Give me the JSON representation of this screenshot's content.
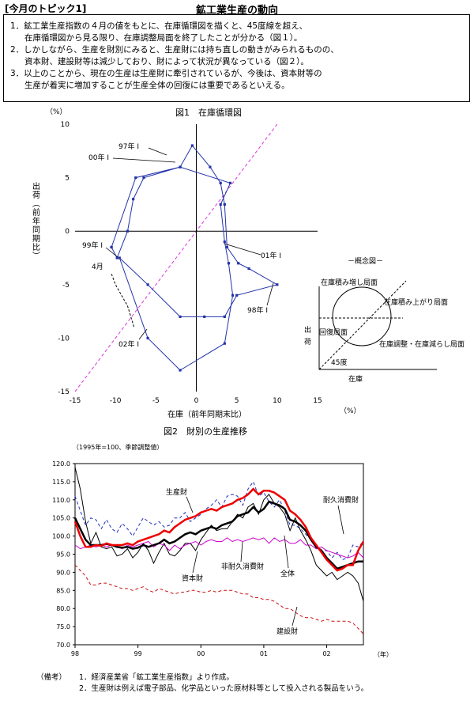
{
  "header": {
    "topic": "[今月のトピック1]",
    "title": "鉱工業生産の動向"
  },
  "summary": [
    "1．鉱工業生産指数の４月の値をもとに、在庫循環図を描くと、45度線を超え、",
    "在庫循環図から見る限り、在庫調整局面を終了したことが分かる（図１）。",
    "2．しかしながら、生産を財別にみると、生産財には持ち直しの動きがみられるものの、",
    "資本財、建設財等は減少しており、財によって状況が異なっている（図２）。",
    "3．以上のことから、現在の生産は生産財に牽引されているが、今後は、資本財等の",
    "生産が着実に増加することが生産全体の回復には重要であるといえる。"
  ],
  "chart_data": [
    {
      "type": "line",
      "title": "図1　在庫循環図",
      "xlabel": "在庫（前年同期末比）",
      "ylabel": "出荷（前年同期比）",
      "x_unit": "（%）",
      "y_unit": "（%）",
      "xlim": [
        -15,
        15
      ],
      "ylim": [
        -15,
        10
      ],
      "xticks": [
        -15,
        -10,
        -5,
        0,
        5,
        10,
        15
      ],
      "yticks": [
        10,
        5,
        0,
        -5,
        -10,
        -15
      ],
      "reference_line": "45度",
      "series": [
        {
          "points": [
            [
              -10.5,
              -1.5
            ],
            [
              -9.8,
              -2.5
            ],
            [
              -8.5,
              0
            ],
            [
              -7.8,
              3
            ],
            [
              -6.5,
              5
            ],
            [
              -2,
              6
            ],
            [
              -0.5,
              8
            ],
            [
              1.7,
              6
            ],
            [
              3,
              4.5
            ],
            [
              3.5,
              2.5
            ],
            [
              3.8,
              -1.5
            ],
            [
              5.2,
              -3
            ],
            [
              6.5,
              -3.5
            ],
            [
              10,
              -5
            ],
            [
              5,
              -6
            ],
            [
              3.5,
              -8
            ],
            [
              1,
              -8
            ],
            [
              -2,
              -8
            ],
            [
              -6,
              -5
            ],
            [
              -9.5,
              -2.5
            ],
            [
              -6,
              -10
            ],
            [
              -2,
              -13
            ],
            [
              3.5,
              -10.5
            ],
            [
              4.5,
              -6
            ],
            [
              4,
              -3
            ],
            [
              3.5,
              -1
            ],
            [
              3,
              2.5
            ],
            [
              4.2,
              4.5
            ],
            [
              -2,
              6
            ],
            [
              -7.5,
              5
            ],
            [
              -10.5,
              -1.5
            ]
          ]
        },
        {
          "points": [
            [
              -10.5,
              -4
            ],
            [
              -10,
              -5
            ],
            [
              -8.5,
              -7
            ],
            [
              -7.7,
              -9
            ]
          ],
          "dashed": true
        }
      ],
      "annotations": [
        "97年 I",
        "00年 I",
        "99年 I",
        "4月",
        "01年 I",
        "98年 I",
        "02年 I"
      ]
    },
    {
      "type": "diagram",
      "title": "－概念図－",
      "labels": [
        "在庫積み増し局面",
        "在庫積み上がり局面",
        "回復局面",
        "在庫調整・在庫減らし局面",
        "45度"
      ],
      "ylabel": "出荷",
      "xlabel": "在庫"
    },
    {
      "type": "line",
      "title": "図2　財別の生産推移",
      "subtitle": "（1995年=100、季節調整値）",
      "x_unit": "（年）",
      "ylim": [
        70,
        120
      ],
      "yticks": [
        120.0,
        115.0,
        110.0,
        105.0,
        100.0,
        95.0,
        90.0,
        85.0,
        80.0,
        75.0,
        70.0
      ],
      "xticks": [
        "98",
        "99",
        "00",
        "01",
        "02"
      ],
      "x_start": 1998.0,
      "x_step_months": 1,
      "series": [
        {
          "name": "全体",
          "color": "#000000",
          "width": 2.5,
          "values": [
            105,
            102,
            99,
            97.5,
            97.5,
            97.5,
            97.8,
            97.5,
            97,
            96.8,
            97,
            96.5,
            96.8,
            97.5,
            97,
            97.5,
            98,
            99,
            98,
            98.5,
            99.5,
            100.5,
            101,
            100.5,
            101.5,
            102,
            102.5,
            102,
            103,
            103.5,
            104,
            105.5,
            106,
            106.5,
            108,
            106.5,
            107.5,
            109.5,
            109,
            108.5,
            107.5,
            104.5,
            104,
            103,
            101.5,
            99,
            97,
            96,
            94,
            92.5,
            91,
            91.5,
            92,
            92.5,
            93,
            93
          ]
        },
        {
          "name": "生産財",
          "color": "#ee0000",
          "width": 2.5,
          "values": [
            104,
            100,
            97,
            97,
            97.5,
            97.3,
            98,
            97.5,
            97.5,
            97.5,
            98,
            97.5,
            98.5,
            99,
            99.5,
            100,
            100.5,
            101.5,
            101,
            102.5,
            103.5,
            104.5,
            105,
            105.5,
            106.5,
            107,
            107.5,
            107,
            108,
            108.5,
            109,
            110,
            110.5,
            111.5,
            113,
            111.5,
            112.5,
            112.5,
            112,
            111,
            110,
            107,
            106,
            104.5,
            102.5,
            99.5,
            97.5,
            95.5,
            93.5,
            92,
            90.5,
            91,
            92,
            92,
            96,
            98.5
          ]
        },
        {
          "name": "資本財",
          "color": "#000000",
          "width": 1,
          "values": [
            119,
            113,
            104,
            98,
            101,
            97,
            96.5,
            97,
            94.5,
            95,
            96.5,
            94,
            95.5,
            98,
            96,
            92.5,
            95.5,
            98,
            95,
            94.5,
            96,
            98,
            98,
            96,
            99,
            101,
            103,
            101.5,
            102,
            102,
            104,
            106,
            105,
            108,
            109,
            106,
            110,
            111.5,
            109,
            108,
            106,
            101.5,
            105,
            101.5,
            99,
            96,
            92,
            90.5,
            89,
            90,
            88,
            89,
            90,
            89,
            87,
            82
          ]
        },
        {
          "name": "耐久消費財",
          "color": "#1f2fbf",
          "dashed": true,
          "width": 1,
          "values": [
            111,
            107,
            103,
            105,
            104.5,
            102,
            104.5,
            102,
            101,
            103.5,
            102,
            100,
            102.5,
            105,
            104,
            103,
            104,
            102.5,
            103,
            105,
            105,
            106.5,
            104,
            105,
            106,
            107.5,
            108.5,
            110,
            108,
            111,
            111.5,
            111,
            108.5,
            113,
            115,
            111,
            112,
            109.5,
            108,
            110,
            107,
            103,
            103,
            102,
            100.5,
            99,
            96.5,
            96,
            96,
            94,
            95.5,
            93.5,
            94,
            97.5,
            97,
            98.5
          ]
        },
        {
          "name": "非耐久消費財",
          "color": "#cc00cc",
          "width": 1,
          "values": [
            97.5,
            96.5,
            97,
            97.5,
            97,
            97.5,
            97,
            97.5,
            97,
            96.5,
            97.5,
            97,
            97.5,
            98,
            98.5,
            97,
            98,
            97.5,
            96,
            97.5,
            96.5,
            97.5,
            98,
            98.5,
            97.5,
            98.5,
            99,
            98.5,
            98.5,
            99.5,
            98.5,
            99,
            98.5,
            99,
            99.5,
            99,
            99.5,
            98,
            99.5,
            98.5,
            99,
            98,
            98,
            99,
            97.5,
            97.5,
            96.5,
            97,
            96,
            95.5,
            95,
            94.5,
            94,
            94.5,
            95.5,
            94
          ]
        },
        {
          "name": "建設財",
          "color": "#cc1111",
          "dashed": true,
          "width": 1,
          "values": [
            92,
            90.5,
            89,
            86.5,
            86.5,
            87,
            87,
            86.5,
            86,
            85.5,
            85.5,
            85,
            85.5,
            86,
            85,
            84.5,
            85.5,
            85,
            84.5,
            84,
            84.5,
            84.5,
            85,
            85,
            84.5,
            84.5,
            85,
            84.5,
            85,
            85,
            85,
            84.5,
            84,
            84,
            83,
            83,
            82.5,
            82.5,
            82,
            81,
            80,
            80,
            79,
            78,
            77.5,
            77.5,
            77,
            76.5,
            77,
            76.5,
            76.5,
            76.5,
            76.5,
            76,
            74.5,
            73
          ]
        }
      ]
    }
  ],
  "notes": {
    "label": "（備考）",
    "items": [
      "1．経済産業省「鉱工業生産指数」より作成。",
      "2．生産財は例えば電子部品、化学品といった原材料等として投入される製品をいう。"
    ]
  }
}
